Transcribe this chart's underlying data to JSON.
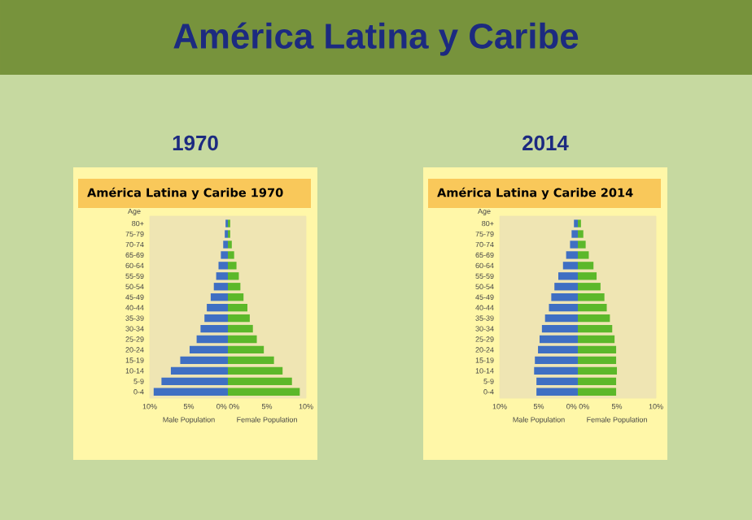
{
  "chart_data": [
    {
      "type": "bar",
      "orientation": "horizontal",
      "stacked": true,
      "title": "1970",
      "subtitle": "América Latina y Caribe 1970",
      "annotations": [
        "América Latina y Caribe"
      ],
      "ylabel": "Age",
      "categories": [
        "80+",
        "75-79",
        "70-74",
        "65-69",
        "60-64",
        "55-59",
        "50-54",
        "45-49",
        "40-44",
        "35-39",
        "30-34",
        "25-29",
        "20-24",
        "15-19",
        "10-14",
        "5-9",
        "0-4"
      ],
      "series": [
        {
          "name": "Male Population",
          "color": "#3f6fc3",
          "values": [
            -0.3,
            -0.4,
            -0.6,
            -0.9,
            -1.2,
            -1.5,
            -1.8,
            -2.2,
            -2.7,
            -3.0,
            -3.5,
            -4.0,
            -4.9,
            -6.1,
            -7.3,
            -8.5,
            -9.5
          ]
        },
        {
          "name": "Female Population",
          "color": "#5cb82a",
          "values": [
            0.3,
            0.3,
            0.5,
            0.8,
            1.1,
            1.4,
            1.6,
            2.0,
            2.5,
            2.8,
            3.2,
            3.7,
            4.6,
            5.9,
            7.0,
            8.2,
            9.2
          ]
        }
      ],
      "xlim": [
        -10,
        10
      ],
      "xticks": [
        {
          "value": -10,
          "label": "10%"
        },
        {
          "value": -5,
          "label": "5%"
        },
        {
          "value": 0,
          "label": "0% 0%"
        },
        {
          "value": 5,
          "label": "5%"
        },
        {
          "value": 10,
          "label": "10%"
        }
      ]
    },
    {
      "type": "bar",
      "orientation": "horizontal",
      "stacked": true,
      "title": "2014",
      "subtitle": "América Latina y Caribe 2014",
      "ylabel": "Age",
      "categories": [
        "80+",
        "75-79",
        "70-74",
        "65-69",
        "60-64",
        "55-59",
        "50-54",
        "45-49",
        "40-44",
        "35-39",
        "30-34",
        "25-29",
        "20-24",
        "15-19",
        "10-14",
        "5-9",
        "0-4"
      ],
      "series": [
        {
          "name": "Male Population",
          "color": "#3f6fc3",
          "values": [
            -0.5,
            -0.8,
            -1.0,
            -1.5,
            -1.9,
            -2.5,
            -3.0,
            -3.4,
            -3.7,
            -4.2,
            -4.6,
            -4.9,
            -5.1,
            -5.5,
            -5.6,
            -5.3,
            -5.3
          ]
        },
        {
          "name": "Female Population",
          "color": "#5cb82a",
          "values": [
            0.4,
            0.7,
            1.0,
            1.4,
            2.0,
            2.4,
            2.9,
            3.4,
            3.7,
            4.1,
            4.4,
            4.7,
            4.9,
            4.9,
            5.0,
            4.9,
            4.9
          ]
        }
      ],
      "xlim": [
        -10,
        10
      ],
      "xticks": [
        {
          "value": -10,
          "label": "10%"
        },
        {
          "value": -5,
          "label": "5%"
        },
        {
          "value": 0,
          "label": "0% 0%"
        },
        {
          "value": 5,
          "label": "5%"
        },
        {
          "value": 10,
          "label": "10%"
        }
      ]
    }
  ]
}
